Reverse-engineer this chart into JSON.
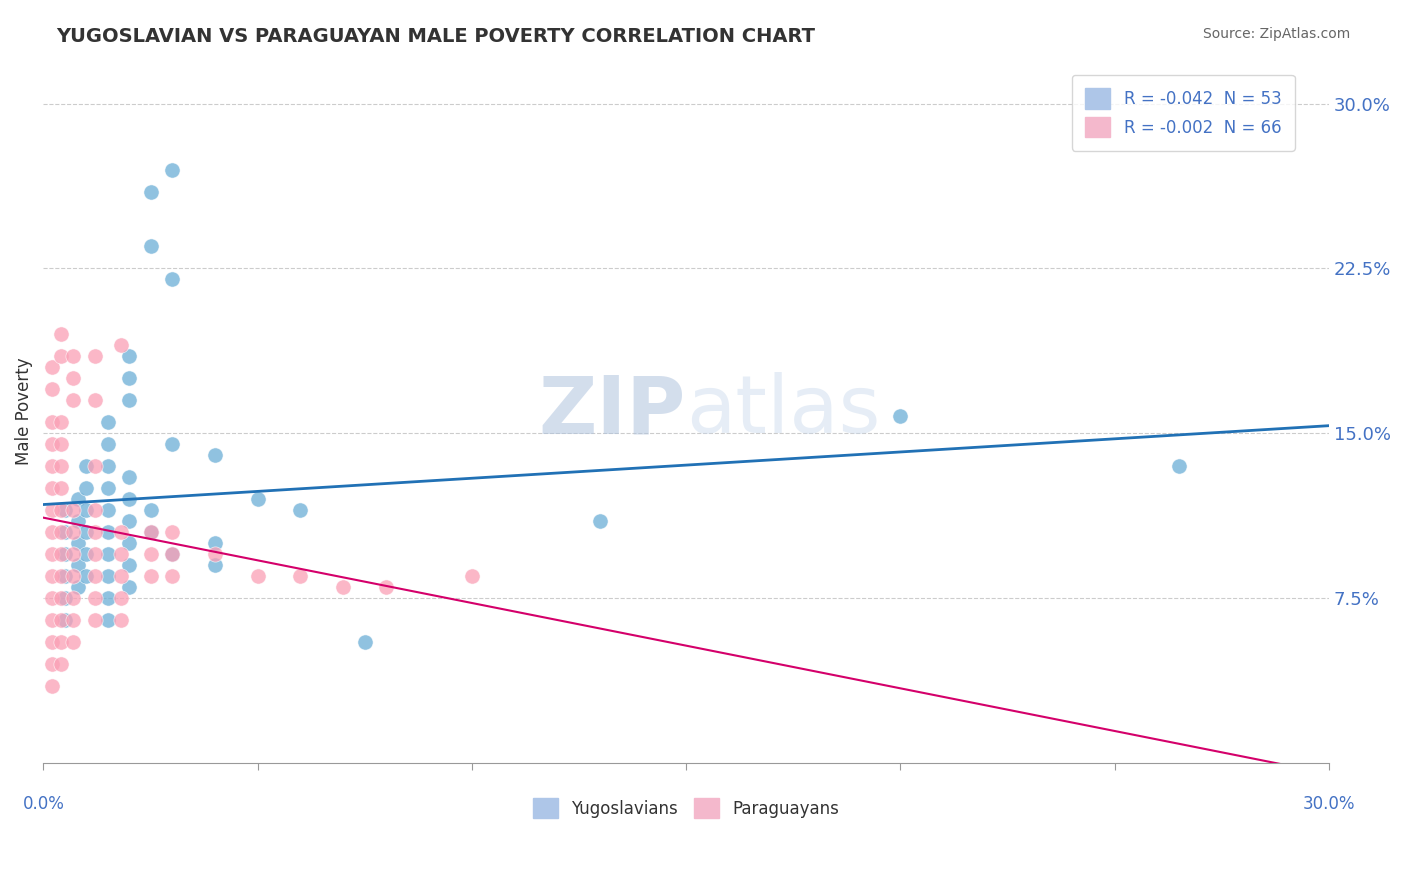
{
  "title": "YUGOSLAVIAN VS PARAGUAYAN MALE POVERTY CORRELATION CHART",
  "source": "Source: ZipAtlas.com",
  "ylabel": "Male Poverty",
  "ytick_vals": [
    0.075,
    0.15,
    0.225,
    0.3
  ],
  "xlim": [
    0.0,
    0.3
  ],
  "ylim": [
    0.0,
    0.32
  ],
  "legend_blue_label": "R = -0.042  N = 53",
  "legend_pink_label": "R = -0.002  N = 66",
  "bottom_legend_blue": "Yugoslavians",
  "bottom_legend_pink": "Paraguayans",
  "blue_color": "#6baed6",
  "pink_color": "#fa9fb5",
  "blue_line_color": "#2171b5",
  "pink_line_color": "#d4006a",
  "watermark_zip": "ZIP",
  "watermark_atlas": "atlas",
  "blue_scatter": [
    [
      0.005,
      0.115
    ],
    [
      0.005,
      0.105
    ],
    [
      0.005,
      0.095
    ],
    [
      0.005,
      0.085
    ],
    [
      0.005,
      0.075
    ],
    [
      0.005,
      0.065
    ],
    [
      0.008,
      0.12
    ],
    [
      0.008,
      0.11
    ],
    [
      0.008,
      0.1
    ],
    [
      0.008,
      0.09
    ],
    [
      0.008,
      0.08
    ],
    [
      0.01,
      0.135
    ],
    [
      0.01,
      0.125
    ],
    [
      0.01,
      0.115
    ],
    [
      0.01,
      0.105
    ],
    [
      0.01,
      0.095
    ],
    [
      0.01,
      0.085
    ],
    [
      0.015,
      0.155
    ],
    [
      0.015,
      0.145
    ],
    [
      0.015,
      0.135
    ],
    [
      0.015,
      0.125
    ],
    [
      0.015,
      0.115
    ],
    [
      0.015,
      0.105
    ],
    [
      0.015,
      0.095
    ],
    [
      0.015,
      0.085
    ],
    [
      0.015,
      0.075
    ],
    [
      0.015,
      0.065
    ],
    [
      0.02,
      0.185
    ],
    [
      0.02,
      0.175
    ],
    [
      0.02,
      0.165
    ],
    [
      0.02,
      0.13
    ],
    [
      0.02,
      0.12
    ],
    [
      0.02,
      0.11
    ],
    [
      0.02,
      0.1
    ],
    [
      0.02,
      0.09
    ],
    [
      0.02,
      0.08
    ],
    [
      0.025,
      0.26
    ],
    [
      0.025,
      0.235
    ],
    [
      0.025,
      0.115
    ],
    [
      0.025,
      0.105
    ],
    [
      0.03,
      0.27
    ],
    [
      0.03,
      0.22
    ],
    [
      0.03,
      0.145
    ],
    [
      0.03,
      0.095
    ],
    [
      0.04,
      0.14
    ],
    [
      0.04,
      0.1
    ],
    [
      0.04,
      0.09
    ],
    [
      0.05,
      0.12
    ],
    [
      0.06,
      0.115
    ],
    [
      0.075,
      0.055
    ],
    [
      0.13,
      0.11
    ],
    [
      0.2,
      0.158
    ],
    [
      0.265,
      0.135
    ]
  ],
  "pink_scatter": [
    [
      0.002,
      0.18
    ],
    [
      0.002,
      0.17
    ],
    [
      0.002,
      0.155
    ],
    [
      0.002,
      0.145
    ],
    [
      0.002,
      0.135
    ],
    [
      0.002,
      0.125
    ],
    [
      0.002,
      0.115
    ],
    [
      0.002,
      0.105
    ],
    [
      0.002,
      0.095
    ],
    [
      0.002,
      0.085
    ],
    [
      0.002,
      0.075
    ],
    [
      0.002,
      0.065
    ],
    [
      0.002,
      0.055
    ],
    [
      0.002,
      0.045
    ],
    [
      0.002,
      0.035
    ],
    [
      0.004,
      0.195
    ],
    [
      0.004,
      0.185
    ],
    [
      0.004,
      0.155
    ],
    [
      0.004,
      0.145
    ],
    [
      0.004,
      0.135
    ],
    [
      0.004,
      0.125
    ],
    [
      0.004,
      0.115
    ],
    [
      0.004,
      0.105
    ],
    [
      0.004,
      0.095
    ],
    [
      0.004,
      0.085
    ],
    [
      0.004,
      0.075
    ],
    [
      0.004,
      0.065
    ],
    [
      0.004,
      0.055
    ],
    [
      0.004,
      0.045
    ],
    [
      0.007,
      0.185
    ],
    [
      0.007,
      0.175
    ],
    [
      0.007,
      0.165
    ],
    [
      0.007,
      0.115
    ],
    [
      0.007,
      0.105
    ],
    [
      0.007,
      0.095
    ],
    [
      0.007,
      0.085
    ],
    [
      0.007,
      0.075
    ],
    [
      0.007,
      0.065
    ],
    [
      0.007,
      0.055
    ],
    [
      0.012,
      0.185
    ],
    [
      0.012,
      0.165
    ],
    [
      0.012,
      0.135
    ],
    [
      0.012,
      0.115
    ],
    [
      0.012,
      0.105
    ],
    [
      0.012,
      0.095
    ],
    [
      0.012,
      0.085
    ],
    [
      0.012,
      0.075
    ],
    [
      0.012,
      0.065
    ],
    [
      0.018,
      0.19
    ],
    [
      0.018,
      0.105
    ],
    [
      0.018,
      0.095
    ],
    [
      0.018,
      0.085
    ],
    [
      0.018,
      0.075
    ],
    [
      0.018,
      0.065
    ],
    [
      0.025,
      0.105
    ],
    [
      0.025,
      0.095
    ],
    [
      0.025,
      0.085
    ],
    [
      0.03,
      0.105
    ],
    [
      0.03,
      0.095
    ],
    [
      0.03,
      0.085
    ],
    [
      0.04,
      0.095
    ],
    [
      0.05,
      0.085
    ],
    [
      0.06,
      0.085
    ],
    [
      0.07,
      0.08
    ],
    [
      0.08,
      0.08
    ],
    [
      0.1,
      0.085
    ]
  ]
}
